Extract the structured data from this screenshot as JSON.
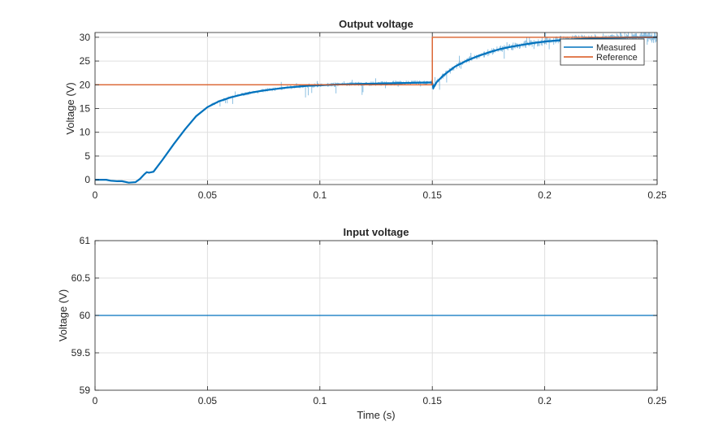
{
  "chart_data": [
    {
      "type": "line",
      "title": "Output voltage",
      "xlabel": "",
      "ylabel": "Voltage (V)",
      "xlim": [
        0,
        0.25
      ],
      "ylim": [
        -1,
        31
      ],
      "xticks": [
        0,
        0.05,
        0.1,
        0.15,
        0.2,
        0.25
      ],
      "xtick_labels": [
        "0",
        "0.05",
        "0.1",
        "0.15",
        "0.2",
        "0.25"
      ],
      "yticks": [
        0,
        5,
        10,
        15,
        20,
        25,
        30
      ],
      "ytick_labels": [
        "0",
        "5",
        "10",
        "15",
        "20",
        "25",
        "30"
      ],
      "grid": true,
      "legend_position": "top-right",
      "series": [
        {
          "name": "Measured",
          "color": "#0072BD",
          "x": [
            0,
            0.005,
            0.007,
            0.01,
            0.012,
            0.015,
            0.018,
            0.02,
            0.022,
            0.023,
            0.024,
            0.026,
            0.03,
            0.035,
            0.04,
            0.045,
            0.05,
            0.055,
            0.06,
            0.065,
            0.07,
            0.075,
            0.08,
            0.085,
            0.09,
            0.095,
            0.1,
            0.11,
            0.12,
            0.13,
            0.14,
            0.1499,
            0.1505,
            0.152,
            0.155,
            0.16,
            0.165,
            0.17,
            0.175,
            0.18,
            0.185,
            0.19,
            0.195,
            0.2,
            0.21,
            0.22,
            0.23,
            0.24,
            0.25
          ],
          "y": [
            0,
            0,
            -0.2,
            -0.3,
            -0.3,
            -0.6,
            -0.5,
            0.2,
            1.2,
            1.6,
            1.5,
            1.7,
            4.2,
            7.5,
            10.6,
            13.4,
            15.3,
            16.5,
            17.3,
            17.9,
            18.4,
            18.8,
            19.1,
            19.4,
            19.6,
            19.8,
            19.9,
            20.1,
            20.2,
            20.3,
            20.4,
            20.5,
            19.4,
            20.6,
            22.0,
            23.8,
            25.0,
            26.0,
            26.8,
            27.5,
            28.0,
            28.4,
            28.8,
            29.1,
            29.5,
            29.7,
            29.9,
            30.0,
            30.0
          ]
        },
        {
          "name": "Reference",
          "color": "#D95319",
          "x": [
            0,
            0.15,
            0.15,
            0.25
          ],
          "y": [
            20,
            20,
            30,
            30
          ]
        }
      ]
    },
    {
      "type": "line",
      "title": "Input voltage",
      "xlabel": "Time (s)",
      "ylabel": "Voltage (V)",
      "xlim": [
        0,
        0.25
      ],
      "ylim": [
        59,
        61
      ],
      "xticks": [
        0,
        0.05,
        0.1,
        0.15,
        0.2,
        0.25
      ],
      "xtick_labels": [
        "0",
        "0.05",
        "0.1",
        "0.15",
        "0.2",
        "0.25"
      ],
      "yticks": [
        59,
        59.5,
        60,
        60.5,
        61
      ],
      "ytick_labels": [
        "59",
        "59.5",
        "60",
        "60.5",
        "61"
      ],
      "grid": true,
      "series": [
        {
          "color": "#0072BD",
          "x": [
            0,
            0.25
          ],
          "y": [
            60,
            60
          ]
        }
      ]
    }
  ]
}
